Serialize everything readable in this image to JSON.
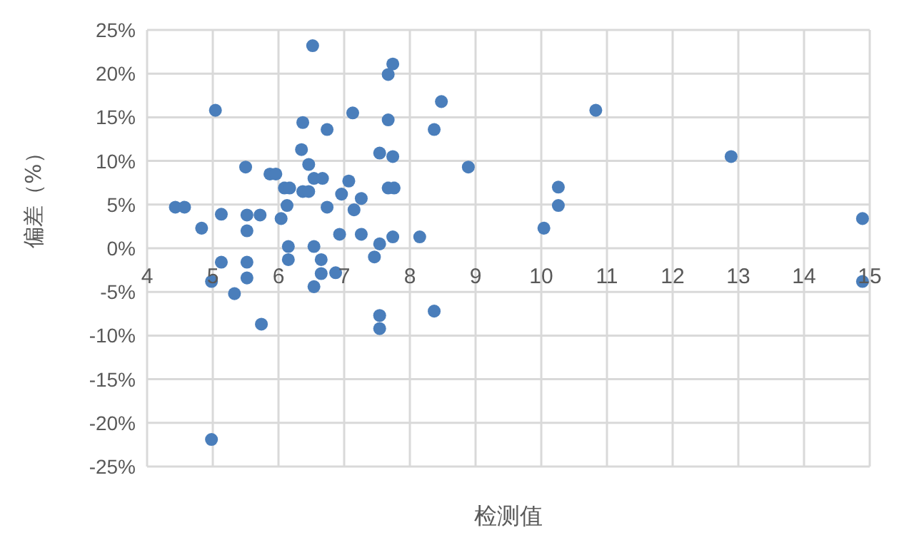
{
  "chart_data": {
    "type": "scatter",
    "xlabel": "检测值",
    "ylabel": "偏差（%）",
    "color": "#4a7ebb",
    "marker": "circle",
    "grid": true,
    "xlim": [
      4,
      15
    ],
    "xticks": [
      4,
      5,
      6,
      7,
      8,
      9,
      10,
      11,
      12,
      13,
      14,
      15
    ],
    "ylim": [
      -25,
      25
    ],
    "yticks": [
      {
        "value": -25,
        "label": "-25%"
      },
      {
        "value": -20,
        "label": "-20%"
      },
      {
        "value": -15,
        "label": "-15%"
      },
      {
        "value": -10,
        "label": "-10%"
      },
      {
        "value": -5,
        "label": "-5%"
      },
      {
        "value": 0,
        "label": "0%"
      },
      {
        "value": 5,
        "label": "5%"
      },
      {
        "value": 10,
        "label": "10%"
      },
      {
        "value": 15,
        "label": "15%"
      },
      {
        "value": 20,
        "label": "20%"
      },
      {
        "value": 25,
        "label": "25%"
      }
    ],
    "x": [
      6.52,
      7.74,
      7.67,
      5.04,
      7.13,
      8.48,
      8.37,
      6.74,
      6.37,
      7.67,
      10.83,
      12.89,
      8.89,
      5.5,
      6.35,
      7.54,
      7.74,
      6.46,
      5.87,
      5.96,
      6.54,
      6.67,
      7.07,
      6.09,
      6.17,
      6.37,
      6.46,
      7.67,
      7.76,
      6.96,
      7.26,
      6.13,
      6.74,
      7.15,
      4.43,
      4.57,
      5.13,
      5.52,
      5.72,
      6.04,
      4.83,
      5.52,
      6.93,
      7.26,
      7.74,
      8.15,
      10.04,
      10.26,
      10.26,
      14.89,
      14.89,
      6.15,
      6.54,
      7.54,
      6.65,
      6.15,
      7.46,
      5.13,
      5.52,
      6.65,
      6.87,
      4.98,
      5.52,
      5.33,
      6.54,
      7.54,
      7.54,
      8.37,
      5.74,
      4.98
    ],
    "values": [
      23.2,
      21.1,
      19.9,
      15.8,
      15.5,
      16.8,
      13.6,
      13.6,
      14.4,
      14.7,
      15.8,
      10.5,
      9.3,
      9.3,
      11.3,
      10.9,
      10.5,
      9.6,
      8.5,
      8.5,
      8.0,
      8.0,
      7.7,
      6.9,
      6.9,
      6.5,
      6.5,
      6.9,
      6.9,
      6.2,
      5.7,
      4.9,
      4.7,
      4.4,
      4.7,
      4.7,
      3.9,
      3.8,
      3.8,
      3.4,
      2.3,
      2.0,
      1.6,
      1.6,
      1.3,
      1.3,
      2.3,
      4.9,
      7.0,
      3.4,
      -3.8,
      0.2,
      0.2,
      0.5,
      -1.3,
      -1.3,
      -1.0,
      -1.6,
      -1.6,
      -2.9,
      -2.8,
      -3.8,
      -3.4,
      -5.2,
      -4.4,
      -7.7,
      -9.2,
      -7.2,
      -8.7,
      -21.9
    ]
  }
}
